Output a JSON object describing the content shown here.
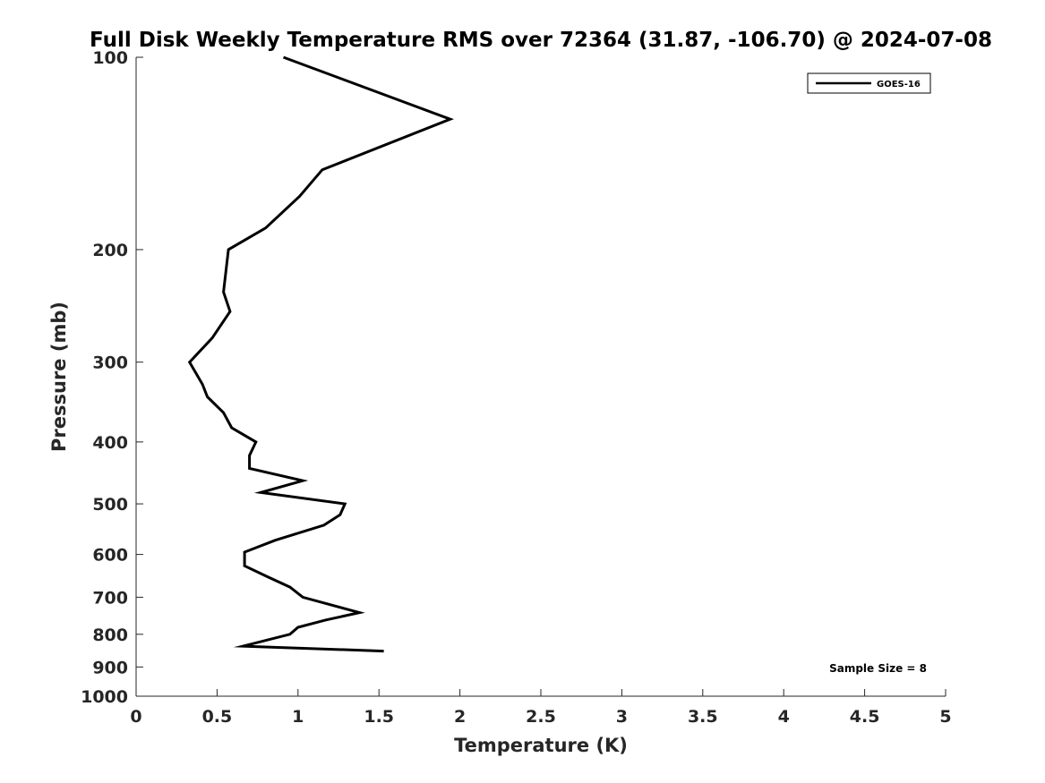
{
  "chart_data": {
    "type": "line",
    "title": "Full Disk Weekly Temperature RMS over 72364 (31.87, -106.70) @ 2024-07-08",
    "xlabel": "Temperature (K)",
    "ylabel": "Pressure (mb)",
    "xlim": [
      0,
      5
    ],
    "ylim": [
      100,
      1000
    ],
    "y_scale": "log",
    "y_reversed": true,
    "x_ticks": [
      "0",
      "0.5",
      "1",
      "1.5",
      "2",
      "2.5",
      "3",
      "3.5",
      "4",
      "4.5",
      "5"
    ],
    "y_ticks": [
      "100",
      "200",
      "300",
      "400",
      "500",
      "600",
      "700",
      "800",
      "900",
      "1000"
    ],
    "grid": false,
    "legend_position": "top-right",
    "series": [
      {
        "name": "GOES-16",
        "color": "#000000",
        "points": [
          {
            "x": 0.91,
            "y": 100
          },
          {
            "x": 1.94,
            "y": 125
          },
          {
            "x": 1.15,
            "y": 150
          },
          {
            "x": 1.01,
            "y": 165
          },
          {
            "x": 0.8,
            "y": 185
          },
          {
            "x": 0.57,
            "y": 200
          },
          {
            "x": 0.54,
            "y": 233
          },
          {
            "x": 0.58,
            "y": 250
          },
          {
            "x": 0.47,
            "y": 275
          },
          {
            "x": 0.33,
            "y": 300
          },
          {
            "x": 0.41,
            "y": 325
          },
          {
            "x": 0.44,
            "y": 340
          },
          {
            "x": 0.54,
            "y": 360
          },
          {
            "x": 0.59,
            "y": 380
          },
          {
            "x": 0.74,
            "y": 400
          },
          {
            "x": 0.7,
            "y": 420
          },
          {
            "x": 0.7,
            "y": 440
          },
          {
            "x": 1.03,
            "y": 460
          },
          {
            "x": 0.77,
            "y": 480
          },
          {
            "x": 1.29,
            "y": 500
          },
          {
            "x": 1.26,
            "y": 520
          },
          {
            "x": 1.16,
            "y": 540
          },
          {
            "x": 0.86,
            "y": 570
          },
          {
            "x": 0.67,
            "y": 595
          },
          {
            "x": 0.67,
            "y": 625
          },
          {
            "x": 0.81,
            "y": 650
          },
          {
            "x": 0.95,
            "y": 675
          },
          {
            "x": 1.03,
            "y": 700
          },
          {
            "x": 1.38,
            "y": 740
          },
          {
            "x": 1.17,
            "y": 760
          },
          {
            "x": 1.0,
            "y": 780
          },
          {
            "x": 0.95,
            "y": 800
          },
          {
            "x": 0.66,
            "y": 835
          },
          {
            "x": 1.53,
            "y": 850
          }
        ]
      }
    ],
    "annotations": [
      "Sample Size = 8"
    ]
  }
}
